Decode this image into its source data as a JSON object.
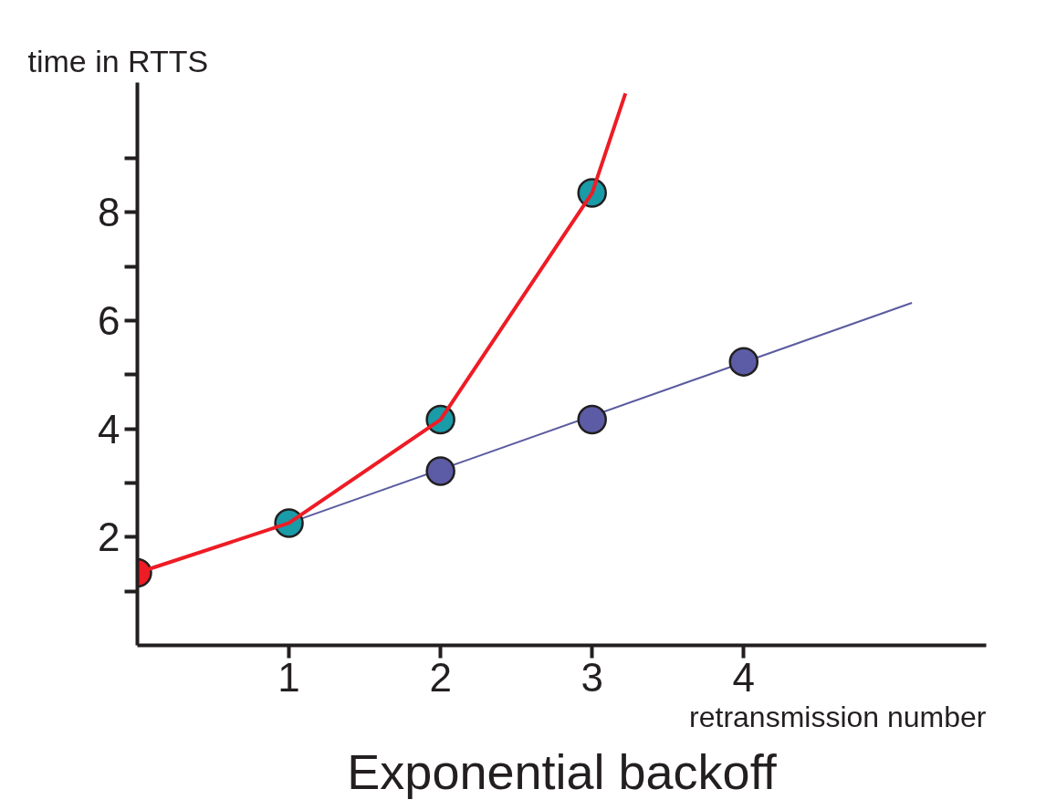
{
  "chart_data": {
    "type": "line",
    "title": "Exponential backoff",
    "xlabel": "retransmission number",
    "ylabel": "time in RTTS",
    "xlim": [
      0,
      5.6
    ],
    "ylim": [
      0,
      10.4
    ],
    "xticks": [
      1,
      2,
      3,
      4
    ],
    "yticks": [
      {
        "value": 1,
        "label": null
      },
      2,
      {
        "value": 3,
        "label": null
      },
      4,
      {
        "value": 5,
        "label": null
      },
      6,
      {
        "value": 7,
        "label": null
      },
      8,
      {
        "value": 9,
        "label": null
      }
    ],
    "grid": false,
    "series": [
      {
        "type": "line",
        "color": "#5b5ba0",
        "marker": "none",
        "x": [
          1,
          5.11
        ],
        "values": [
          2.26,
          6.33
        ]
      },
      {
        "type": "scatter",
        "marker": "circle",
        "color": "#5c5ca6",
        "x": [
          2,
          3,
          4
        ],
        "values": [
          3.22,
          4.17,
          5.24
        ]
      },
      {
        "type": "scatter",
        "marker": "circle",
        "color": "#1a9ba8",
        "x": [
          1,
          2,
          3
        ],
        "values": [
          2.26,
          4.17,
          8.36
        ]
      },
      {
        "type": "scatter",
        "marker": "circle",
        "color": "#ee1c25",
        "x": [
          0
        ],
        "values": [
          1.34
        ]
      },
      {
        "type": "line",
        "color": "#ee1c25",
        "marker": "none",
        "x": [
          0,
          1,
          2,
          3,
          3.22
        ],
        "values": [
          1.34,
          2.26,
          4.17,
          8.36,
          10.2
        ]
      }
    ]
  }
}
